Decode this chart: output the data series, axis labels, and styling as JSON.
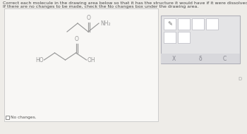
{
  "title_line1": "Correct each molecule in the drawing area below so that it has the structure it would have if it were dissolved in a 0.1 M aqueous solution of HCl.",
  "title_line2": "If there are no changes to be made, check the No changes box under the drawing area.",
  "no_changes_label": "No changes.",
  "bg_color": "#eeece8",
  "box_bg": "#f8f7f5",
  "box_border": "#cccccc",
  "title_fontsize": 4.8,
  "mol_color": "#999999",
  "toolbar_bg": "#e4e4e6",
  "toolbar_border": "#c0c0c4",
  "toolbar_inner_bg": "#d8d8dc"
}
